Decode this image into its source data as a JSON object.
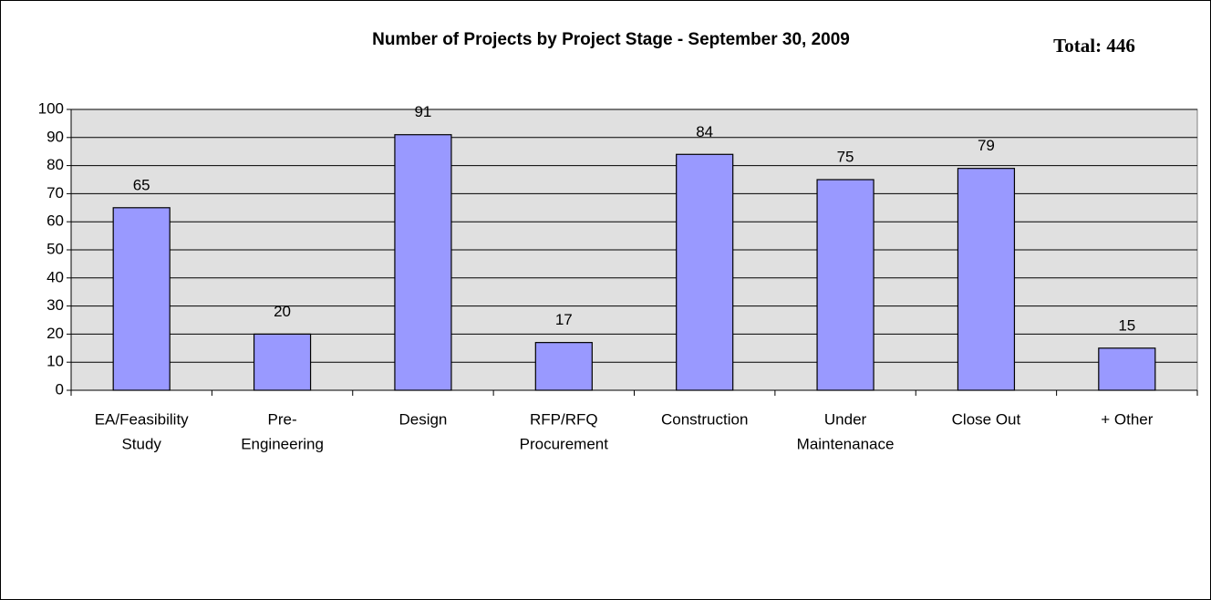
{
  "chart_data": {
    "type": "bar",
    "title": "Number of Projects by Project Stage - September 30, 2009",
    "annotation": "Total: 446",
    "categories": [
      [
        "EA/Feasibility",
        "Study"
      ],
      [
        "Pre-",
        "Engineering"
      ],
      [
        "Design"
      ],
      [
        "RFP/RFQ",
        "Procurement"
      ],
      [
        "Construction"
      ],
      [
        "Under",
        "Maintenanace"
      ],
      [
        "Close Out"
      ],
      [
        "+ Other"
      ]
    ],
    "values": [
      65,
      20,
      91,
      17,
      84,
      75,
      79,
      15
    ],
    "color": "#9999ff",
    "ylim": [
      0,
      100
    ],
    "yticks": [
      0,
      10,
      20,
      30,
      40,
      50,
      60,
      70,
      80,
      90,
      100
    ],
    "grid": true
  }
}
